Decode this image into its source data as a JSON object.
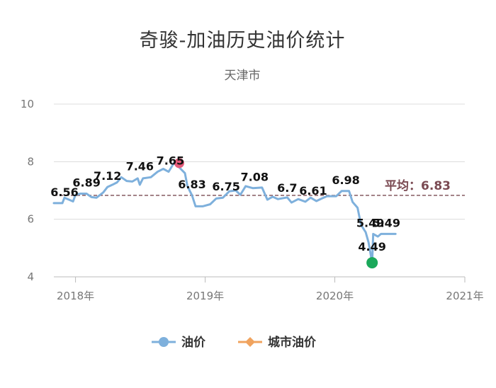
{
  "chart_data": {
    "type": "line",
    "title": "奇骏-加油历史油价统计",
    "subtitle": "天津市",
    "x_axis": {
      "type": "date",
      "range": [
        "2017-11-01",
        "2021-01-01"
      ],
      "tick_labels": [
        {
          "label": "2018年",
          "date": "2018-01-01"
        },
        {
          "label": "2019年",
          "date": "2019-01-01"
        },
        {
          "label": "2020年",
          "date": "2020-01-01"
        },
        {
          "label": "2021年",
          "date": "2021-01-01"
        }
      ]
    },
    "y_axis": {
      "range": [
        4,
        10
      ],
      "ticks": [
        "4",
        "6",
        "8",
        "10"
      ]
    },
    "grid": true,
    "series": [
      {
        "name": "油价",
        "color": "#7eb0dc",
        "points": [
          [
            "2017-11-01",
            6.56
          ],
          [
            "2017-11-25",
            6.56
          ],
          [
            "2017-12-01",
            6.75
          ],
          [
            "2017-12-25",
            6.62
          ],
          [
            "2018-01-01",
            6.85
          ],
          [
            "2018-01-15",
            6.89
          ],
          [
            "2018-02-01",
            6.89
          ],
          [
            "2018-02-15",
            6.77
          ],
          [
            "2018-03-01",
            6.75
          ],
          [
            "2018-03-20",
            6.93
          ],
          [
            "2018-04-01",
            7.12
          ],
          [
            "2018-04-15",
            7.2
          ],
          [
            "2018-04-28",
            7.28
          ],
          [
            "2018-05-10",
            7.46
          ],
          [
            "2018-05-25",
            7.33
          ],
          [
            "2018-06-10",
            7.31
          ],
          [
            "2018-06-25",
            7.42
          ],
          [
            "2018-07-01",
            7.2
          ],
          [
            "2018-07-10",
            7.42
          ],
          [
            "2018-08-01",
            7.46
          ],
          [
            "2018-08-20",
            7.65
          ],
          [
            "2018-09-05",
            7.75
          ],
          [
            "2018-09-20",
            7.65
          ],
          [
            "2018-10-05",
            7.95
          ],
          [
            "2018-10-20",
            7.8
          ],
          [
            "2018-11-05",
            7.6
          ],
          [
            "2018-11-12",
            7.15
          ],
          [
            "2018-11-25",
            6.83
          ],
          [
            "2018-12-05",
            6.45
          ],
          [
            "2018-12-25",
            6.45
          ],
          [
            "2019-01-15",
            6.52
          ],
          [
            "2019-02-01",
            6.72
          ],
          [
            "2019-02-20",
            6.75
          ],
          [
            "2019-03-10",
            6.97
          ],
          [
            "2019-03-28",
            7.0
          ],
          [
            "2019-04-10",
            6.85
          ],
          [
            "2019-04-25",
            7.15
          ],
          [
            "2019-05-15",
            7.08
          ],
          [
            "2019-06-10",
            7.1
          ],
          [
            "2019-06-25",
            6.68
          ],
          [
            "2019-07-10",
            6.78
          ],
          [
            "2019-07-25",
            6.7
          ],
          [
            "2019-08-20",
            6.76
          ],
          [
            "2019-09-01",
            6.58
          ],
          [
            "2019-09-20",
            6.7
          ],
          [
            "2019-10-10",
            6.61
          ],
          [
            "2019-10-25",
            6.75
          ],
          [
            "2019-11-10",
            6.63
          ],
          [
            "2019-11-25",
            6.72
          ],
          [
            "2019-12-10",
            6.8
          ],
          [
            "2020-01-05",
            6.8
          ],
          [
            "2020-01-20",
            6.98
          ],
          [
            "2020-02-10",
            6.98
          ],
          [
            "2020-02-20",
            6.6
          ],
          [
            "2020-03-05",
            6.4
          ],
          [
            "2020-03-15",
            5.8
          ],
          [
            "2020-03-28",
            5.55
          ],
          [
            "2020-04-05",
            5.2
          ],
          [
            "2020-04-15",
            4.49
          ],
          [
            "2020-04-18",
            5.49
          ],
          [
            "2020-05-01",
            5.4
          ],
          [
            "2020-05-10",
            5.49
          ],
          [
            "2020-06-20",
            5.49
          ]
        ]
      },
      {
        "name": "城市油价",
        "color": "#f0a35e",
        "points": []
      }
    ],
    "data_labels": [
      {
        "date": "2017-12-01",
        "value": 6.56,
        "text": "6.56"
      },
      {
        "date": "2018-02-01",
        "value": 6.89,
        "text": "6.89"
      },
      {
        "date": "2018-04-01",
        "value": 7.12,
        "text": "7.12"
      },
      {
        "date": "2018-07-01",
        "value": 7.46,
        "text": "7.46"
      },
      {
        "date": "2018-09-25",
        "value": 7.65,
        "text": "7.65"
      },
      {
        "date": "2018-11-25",
        "value": 6.83,
        "text": "6.83"
      },
      {
        "date": "2019-03-01",
        "value": 6.75,
        "text": "6.75"
      },
      {
        "date": "2019-05-20",
        "value": 7.08,
        "text": "7.08"
      },
      {
        "date": "2019-08-20",
        "value": 6.7,
        "text": "6.7"
      },
      {
        "date": "2019-11-01",
        "value": 6.61,
        "text": "6.61"
      },
      {
        "date": "2020-02-01",
        "value": 6.98,
        "text": "6.98"
      },
      {
        "date": "2020-04-10",
        "value": 5.49,
        "text": "5.49"
      },
      {
        "date": "2020-05-25",
        "value": 5.49,
        "text": "5.49"
      },
      {
        "date": "2020-04-15",
        "value": 4.49,
        "text": "4.49"
      }
    ],
    "max_marker": {
      "date": "2018-10-20",
      "value": 7.95,
      "color": "#e45a7a"
    },
    "min_marker": {
      "date": "2020-04-15",
      "value": 4.49,
      "color": "#1aa85a",
      "label": "4.49"
    },
    "average": {
      "value": 6.83,
      "label": "平均：6.83",
      "color": "#7a4a52"
    },
    "legend": {
      "position": "bottom",
      "items": [
        {
          "name": "油价",
          "color": "#7eb0dc",
          "shape": "circle"
        },
        {
          "name": "城市油价",
          "color": "#f0a35e",
          "shape": "diamond"
        }
      ]
    }
  }
}
